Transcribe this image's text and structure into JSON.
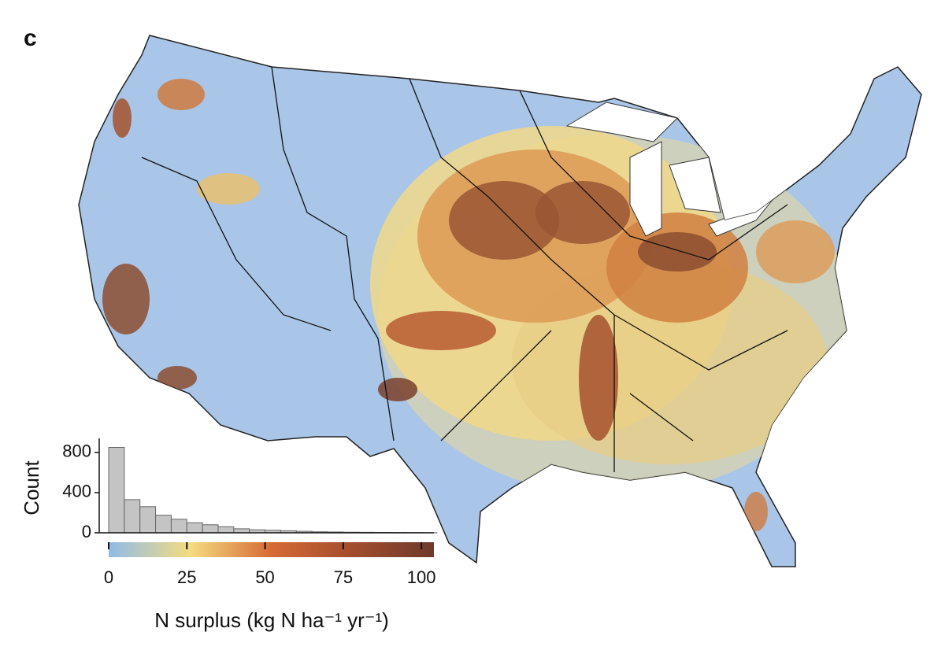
{
  "panel_label": "c",
  "chart_data": {
    "type": "histogram",
    "y_label": "Count",
    "x_label": "N surplus (kg N ha⁻¹ yr⁻¹)",
    "bins": [
      0,
      5,
      10,
      15,
      20,
      25,
      30,
      35,
      40,
      45,
      50,
      55,
      60,
      65,
      70,
      75,
      80,
      85,
      90,
      95,
      100,
      105
    ],
    "counts": [
      850,
      330,
      260,
      175,
      135,
      100,
      80,
      60,
      40,
      30,
      25,
      20,
      15,
      10,
      8,
      6,
      5,
      4,
      3,
      2,
      1
    ],
    "color": "#c4c4c4",
    "xlim": [
      0,
      104
    ],
    "xticks": [
      0,
      25,
      50,
      75,
      100
    ],
    "ylim": [
      0,
      940
    ],
    "yticks": [
      0,
      400,
      800
    ],
    "colormap": [
      "#8fbbe8",
      "#f4dc80",
      "#d66a35",
      "#a24c2e",
      "#6e3a2a"
    ]
  }
}
